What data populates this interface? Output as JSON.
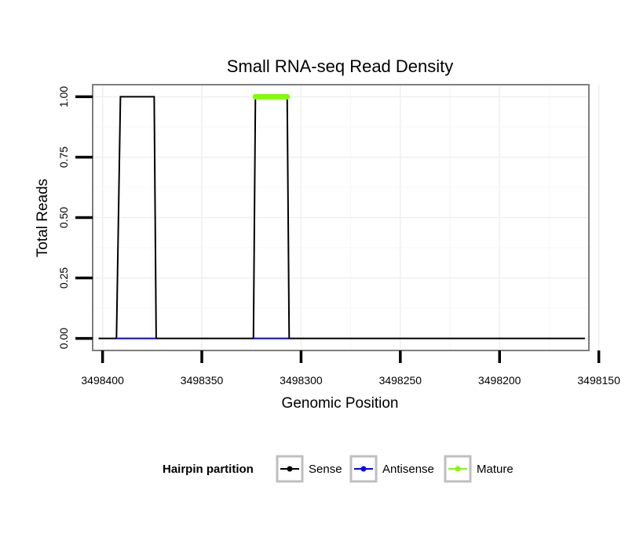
{
  "chart_data": {
    "type": "line",
    "title": "Small RNA-seq Read Density",
    "xlabel": "Genomic Position",
    "ylabel": "Total Reads",
    "x_reversed": true,
    "xlim": [
      3498405,
      3498155
    ],
    "ylim": [
      -0.05,
      1.05
    ],
    "x_ticks": [
      3498400,
      3498350,
      3498300,
      3498250,
      3498200,
      3498150
    ],
    "y_ticks": [
      0.0,
      0.25,
      0.5,
      0.75,
      1.0
    ],
    "x_tick_labels": [
      "3498400",
      "3498350",
      "3498300",
      "3498250",
      "3498200",
      "3498150"
    ],
    "y_tick_labels": [
      "0.00",
      "0.25",
      "0.50",
      "0.75",
      "1.00"
    ],
    "grid": true,
    "legend": {
      "title": "Hairpin partition",
      "position": "bottom",
      "entries": [
        {
          "label": "Sense",
          "color": "#000000"
        },
        {
          "label": "Antisense",
          "color": "#0000ff"
        },
        {
          "label": "Mature",
          "color": "#7fff00"
        }
      ]
    },
    "series": [
      {
        "name": "Sense",
        "color": "#000000",
        "x": [
          3498402,
          3498393,
          3498391,
          3498374,
          3498373,
          3498324,
          3498323,
          3498307,
          3498306,
          3498157
        ],
        "y": [
          0,
          0,
          1,
          1,
          0,
          0,
          1,
          1,
          0,
          0
        ]
      },
      {
        "name": "Antisense",
        "color": "#0000ff",
        "x": [
          3498393,
          3498373,
          3498324,
          3498306
        ],
        "y": [
          0,
          0,
          0,
          0
        ],
        "segments": [
          [
            0,
            1
          ],
          [
            2,
            3
          ]
        ]
      },
      {
        "name": "Mature",
        "color": "#7fff00",
        "x": [
          3498323,
          3498307
        ],
        "y": [
          1,
          1
        ]
      }
    ]
  }
}
